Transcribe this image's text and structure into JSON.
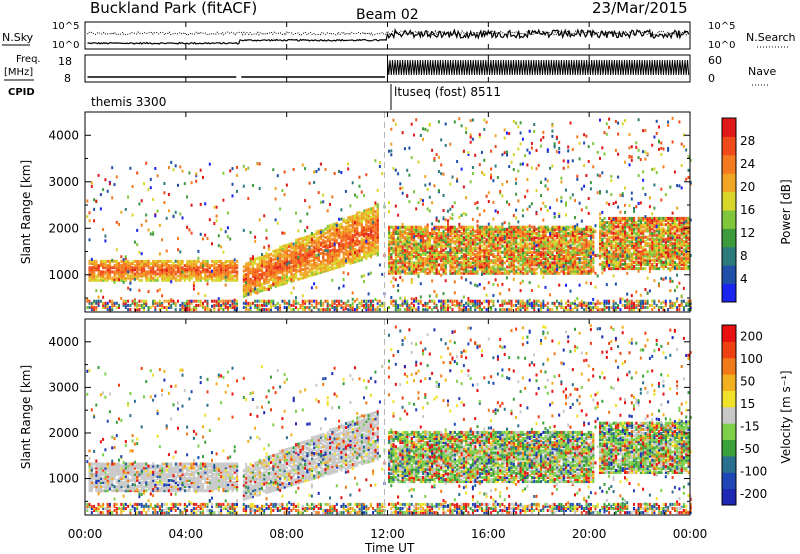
{
  "header": {
    "site": "Buckland Park (fitACF)",
    "beam": "Beam 02",
    "date": "23/Mar/2015"
  },
  "noise_panel": {
    "left_label": "N.Sky",
    "right_label": "N.Search",
    "left_ticks": [
      "10^5",
      "10^0"
    ],
    "right_ticks": [
      "10^5",
      "10^0"
    ]
  },
  "freq_panel": {
    "left_label_top": "Freq.",
    "left_label_bottom": "[MHz]",
    "right_label": "Nave",
    "cpid_label": "CPID",
    "left_ticks": [
      "18",
      "8"
    ],
    "right_ticks": [
      "60",
      "0"
    ]
  },
  "cpid_segments": [
    {
      "label": "themis 3300"
    },
    {
      "label": "ltuseq (fost) 8511"
    }
  ],
  "x_axis": {
    "label": "Time UT",
    "ticks": [
      "00:00",
      "04:00",
      "08:00",
      "12:00",
      "16:00",
      "20:00",
      "00:00"
    ]
  },
  "chart_data": [
    {
      "type": "heatmap",
      "title": "Power",
      "ylabel": "Slant Range [km]",
      "xlabel": "Time UT",
      "x_range_hours": [
        0,
        24
      ],
      "ylim": [
        200,
        4500
      ],
      "y_ticks": [
        1000,
        2000,
        3000,
        4000
      ],
      "colorbar": {
        "label": "Power [dB]",
        "ticks": [
          "4",
          "8",
          "12",
          "16",
          "20",
          "24",
          "28"
        ],
        "colors": [
          "#1a23f0",
          "#1f4fa8",
          "#2d7a7a",
          "#3d9a3d",
          "#7fc63b",
          "#d8d62a",
          "#f0a624",
          "#f47a1f",
          "#f04a1a",
          "#e01818"
        ]
      },
      "features": [
        {
          "desc": "strong band",
          "t_start": 0.1,
          "t_end": 6.0,
          "range_km": [
            850,
            1300
          ],
          "level_db": 28
        },
        {
          "desc": "rising echo",
          "t_start": 6.2,
          "t_end": 11.6,
          "range_km": [
            500,
            2200
          ],
          "level_db": 28
        },
        {
          "desc": "F-region spread",
          "t_start": 12.0,
          "t_end": 20.2,
          "range_km": [
            1000,
            2000
          ],
          "level_db": 14
        },
        {
          "desc": "late band",
          "t_start": 20.3,
          "t_end": 23.9,
          "range_km": [
            1100,
            2200
          ],
          "level_db": 20
        }
      ]
    },
    {
      "type": "heatmap",
      "title": "Velocity",
      "ylabel": "Slant Range [km]",
      "xlabel": "Time UT",
      "x_range_hours": [
        0,
        24
      ],
      "ylim": [
        200,
        4500
      ],
      "y_ticks": [
        1000,
        2000,
        3000,
        4000
      ],
      "colorbar": {
        "label": "Velocity [m s⁻¹]",
        "ticks": [
          "200",
          "100",
          "50",
          "15",
          "-15",
          "-50",
          "-100",
          "-200"
        ],
        "colors": [
          "#1e28b4",
          "#1e46b4",
          "#2a6f8f",
          "#3aa03a",
          "#7ed04a",
          "#c8c8c8",
          "#f0e12a",
          "#f2b020",
          "#f07a18",
          "#ee4010",
          "#e81010"
        ]
      },
      "features": [
        {
          "desc": "ground scatter",
          "t_start": 0.1,
          "t_end": 6.0,
          "range_km": [
            700,
            1300
          ],
          "velocity": 0
        },
        {
          "desc": "ground scatter",
          "t_start": 6.2,
          "t_end": 11.6,
          "range_km": [
            500,
            2200
          ],
          "velocity": 0
        },
        {
          "desc": "mixed",
          "t_start": 12.0,
          "t_end": 20.2,
          "range_km": [
            900,
            2000
          ],
          "velocity": 60
        },
        {
          "desc": "late band",
          "t_start": 20.3,
          "t_end": 23.9,
          "range_km": [
            1100,
            2200
          ],
          "velocity": 30
        }
      ]
    }
  ],
  "colors": {
    "axis": "#000000",
    "dashed_divider": "#b4b4b4"
  }
}
